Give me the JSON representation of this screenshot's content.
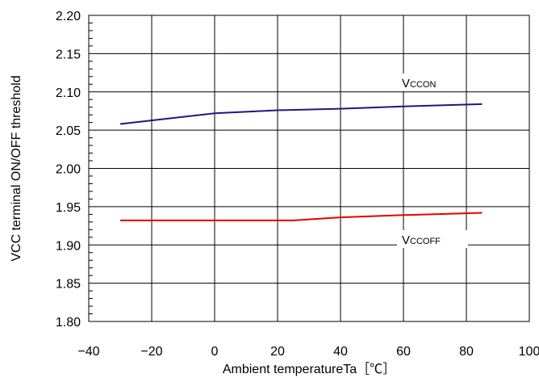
{
  "chart_data": {
    "type": "line",
    "title": "",
    "xlabel": "Ambient temperatureTa［℃］",
    "ylabel": "VCC terminal ON/OFF threshold",
    "xlim": [
      -40,
      100
    ],
    "ylim": [
      1.8,
      2.2
    ],
    "xticks": [
      -40,
      -20,
      0,
      20,
      40,
      60,
      80,
      100
    ],
    "yticks": [
      1.8,
      1.85,
      1.9,
      1.95,
      2.0,
      2.05,
      2.1,
      2.15,
      2.2
    ],
    "xtick_labels": [
      "−40",
      "−20",
      "0",
      "20",
      "40",
      "60",
      "80",
      "100"
    ],
    "ytick_labels": [
      "1.80",
      "1.85",
      "1.90",
      "1.95",
      "2.00",
      "2.05",
      "2.10",
      "2.15",
      "2.20"
    ],
    "grid": true,
    "series": [
      {
        "name": "VCCON",
        "label_main": "V",
        "label_sub": "CCON",
        "color": "#1a1a7a",
        "x": [
          -30,
          0,
          20,
          40,
          60,
          85
        ],
        "y": [
          2.058,
          2.072,
          2.076,
          2.078,
          2.081,
          2.084
        ]
      },
      {
        "name": "VCCOFF",
        "label_main": "V",
        "label_sub": "CCOFF",
        "color": "#e60000",
        "x": [
          -30,
          0,
          25,
          40,
          60,
          85
        ],
        "y": [
          1.932,
          1.932,
          1.932,
          1.936,
          1.939,
          1.942
        ]
      }
    ]
  }
}
